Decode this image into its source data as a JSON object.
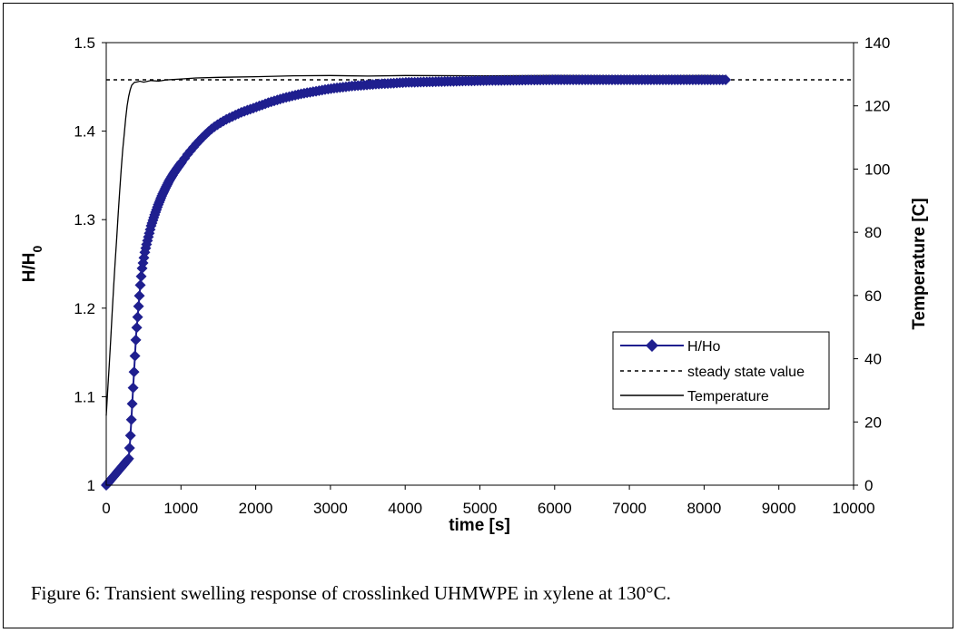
{
  "caption": "Figure 6: Transient swelling response of crosslinked UHMWPE in xylene at 130°C.",
  "chart_data": {
    "type": "line",
    "xlabel": "time [s]",
    "ylabel": "H/H",
    "ylabel_sub": "0",
    "y2label": "Temperature [C]",
    "xlim": [
      0,
      10000
    ],
    "ylim": [
      1,
      1.5
    ],
    "y2lim": [
      0,
      140
    ],
    "x_ticks": [
      "0",
      "1000",
      "2000",
      "3000",
      "4000",
      "5000",
      "6000",
      "7000",
      "8000",
      "9000",
      "10000"
    ],
    "y_ticks": [
      "1",
      "1.1",
      "1.2",
      "1.3",
      "1.4",
      "1.5"
    ],
    "y2_ticks": [
      "0",
      "20",
      "40",
      "60",
      "80",
      "100",
      "120",
      "140"
    ],
    "grid": false,
    "legend_position": "right",
    "series": [
      {
        "name": "H/Ho",
        "axis": "left",
        "color": "#1f1f8f",
        "marker": "diamond",
        "x": [
          0,
          50,
          100,
          150,
          200,
          250,
          300,
          320,
          340,
          360,
          380,
          400,
          420,
          440,
          460,
          480,
          500,
          520,
          540,
          560,
          580,
          600,
          650,
          700,
          750,
          800,
          850,
          900,
          950,
          1000,
          1100,
          1200,
          1300,
          1400,
          1500,
          1600,
          1800,
          2000,
          2200,
          2400,
          2600,
          2800,
          3000,
          3300,
          3600,
          4000,
          4500,
          5000,
          6000,
          7000,
          8000,
          8300
        ],
        "y": [
          1.0,
          1.005,
          1.01,
          1.015,
          1.02,
          1.025,
          1.03,
          1.05,
          1.08,
          1.11,
          1.14,
          1.17,
          1.19,
          1.21,
          1.23,
          1.245,
          1.255,
          1.265,
          1.272,
          1.279,
          1.286,
          1.293,
          1.306,
          1.318,
          1.328,
          1.337,
          1.345,
          1.352,
          1.358,
          1.364,
          1.375,
          1.385,
          1.394,
          1.402,
          1.408,
          1.413,
          1.421,
          1.427,
          1.433,
          1.438,
          1.442,
          1.445,
          1.448,
          1.451,
          1.453,
          1.455,
          1.456,
          1.457,
          1.458,
          1.458,
          1.458,
          1.458
        ]
      },
      {
        "name": "steady state value",
        "axis": "left",
        "color": "#000000",
        "style": "dashed",
        "x": [
          0,
          10000
        ],
        "y": [
          1.458,
          1.458
        ]
      },
      {
        "name": "Temperature",
        "axis": "right",
        "color": "#000000",
        "style": "solid",
        "x": [
          0,
          20,
          40,
          60,
          80,
          100,
          120,
          140,
          160,
          180,
          200,
          220,
          240,
          260,
          280,
          300,
          320,
          340,
          360,
          380,
          400,
          450,
          500,
          600,
          700,
          800,
          1000,
          1200,
          1500,
          2000,
          2500,
          3000,
          3500,
          4000,
          5000,
          6000,
          7000,
          8000,
          8300
        ],
        "y": [
          22,
          30,
          38,
          46,
          55,
          63,
          71,
          78,
          86,
          93,
          100,
          106,
          111,
          116,
          120,
          123,
          125,
          126.5,
          127,
          127.5,
          127.5,
          127.8,
          127.5,
          128,
          127.8,
          128.2,
          128.5,
          128.8,
          129,
          129.2,
          129.5,
          129.6,
          129.4,
          129.6,
          129.5,
          129.6,
          129.5,
          129.6,
          129.5
        ]
      }
    ]
  }
}
